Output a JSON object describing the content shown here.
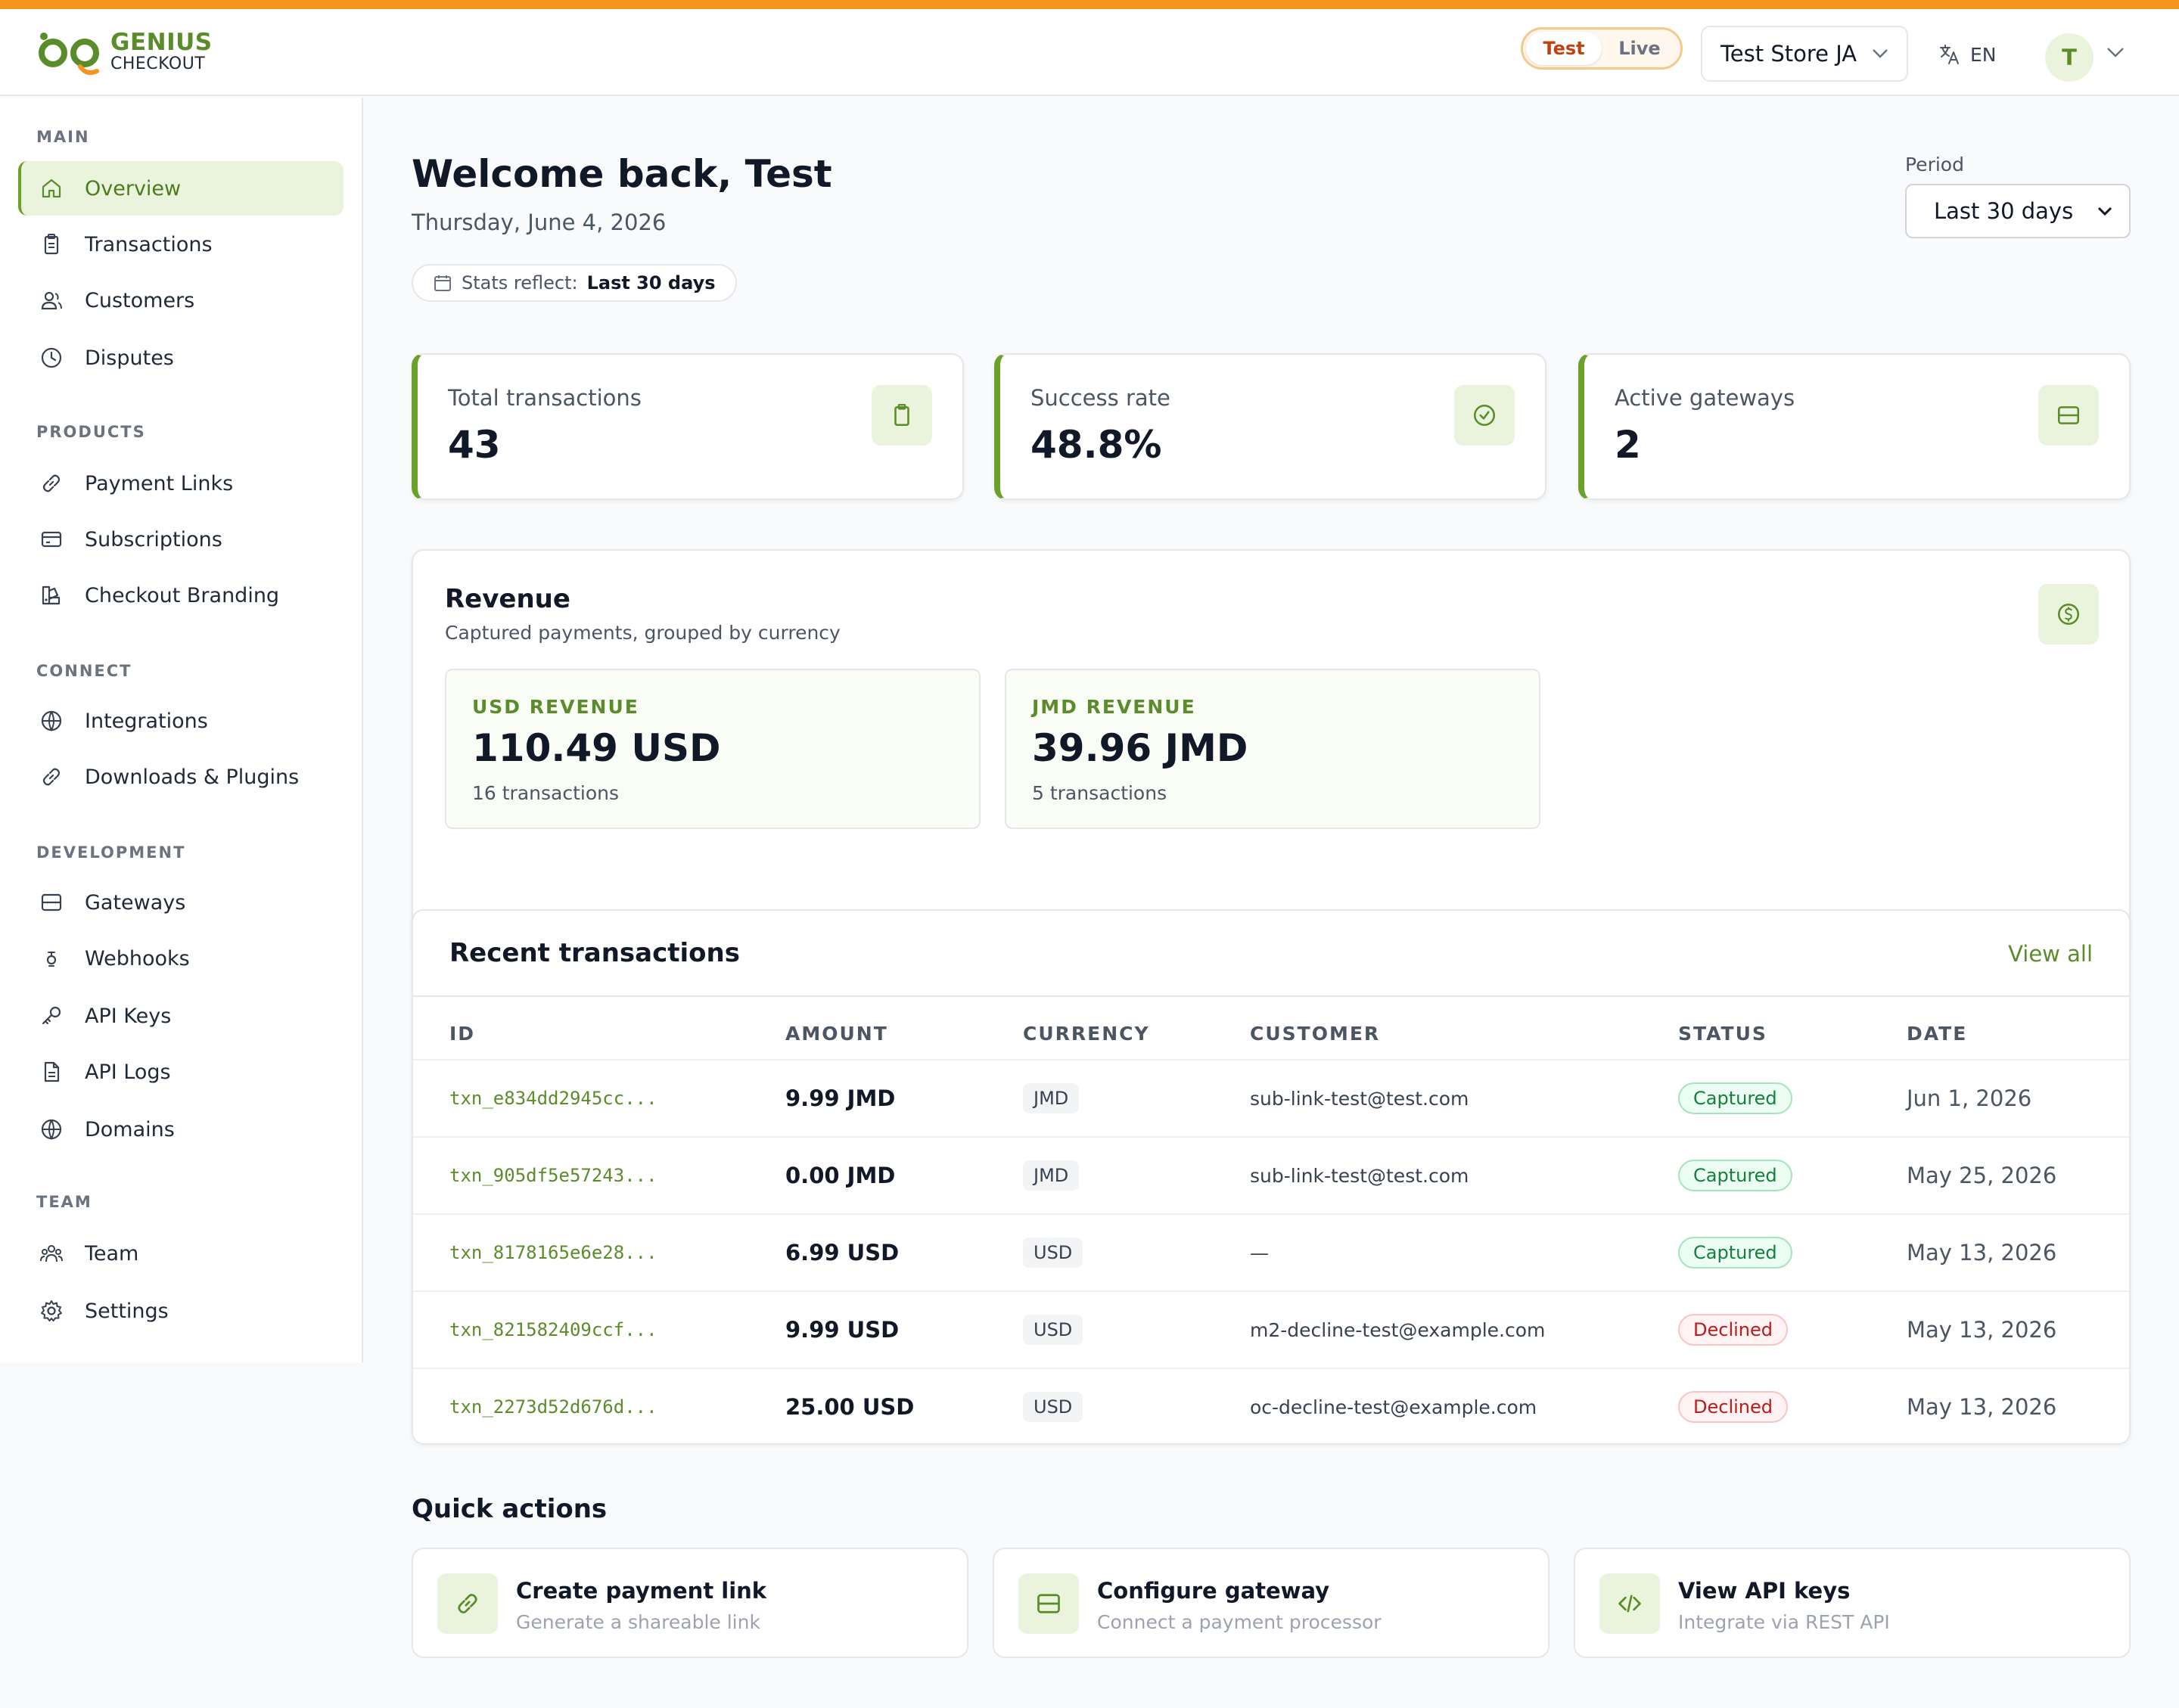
{
  "brand": {
    "line1": "GENIUS",
    "line2": "CHECKOUT",
    "accent_color": "#f7941d",
    "primary_color": "#6aa12b"
  },
  "header": {
    "mode_toggle": {
      "test": "Test",
      "live": "Live",
      "selected": "Test"
    },
    "store": "Test Store JA",
    "language": "EN",
    "avatar_initial": "T"
  },
  "sidebar": {
    "sections": [
      {
        "title": "MAIN",
        "items": [
          {
            "label": "Overview",
            "icon": "home-icon",
            "active": true
          },
          {
            "label": "Transactions",
            "icon": "clipboard-icon"
          },
          {
            "label": "Customers",
            "icon": "users-icon"
          },
          {
            "label": "Disputes",
            "icon": "clock-icon"
          }
        ]
      },
      {
        "title": "PRODUCTS",
        "items": [
          {
            "label": "Payment Links",
            "icon": "link-icon"
          },
          {
            "label": "Subscriptions",
            "icon": "card-icon"
          },
          {
            "label": "Checkout Branding",
            "icon": "palette-icon"
          }
        ]
      },
      {
        "title": "CONNECT",
        "items": [
          {
            "label": "Integrations",
            "icon": "globe-icon"
          },
          {
            "label": "Downloads & Plugins",
            "icon": "link-icon"
          }
        ]
      },
      {
        "title": "DEVELOPMENT",
        "items": [
          {
            "label": "Gateways",
            "icon": "server-icon"
          },
          {
            "label": "Webhooks",
            "icon": "webhook-icon"
          },
          {
            "label": "API Keys",
            "icon": "key-icon"
          },
          {
            "label": "API Logs",
            "icon": "document-icon"
          },
          {
            "label": "Domains",
            "icon": "globe-icon"
          }
        ]
      },
      {
        "title": "TEAM",
        "items": [
          {
            "label": "Team",
            "icon": "team-icon"
          },
          {
            "label": "Settings",
            "icon": "gear-icon"
          }
        ]
      }
    ]
  },
  "main": {
    "welcome": "Welcome back, Test",
    "date": "Thursday, June 4, 2026",
    "stats_reflect_label": "Stats reflect:",
    "stats_reflect_value": "Last 30 days",
    "period_label": "Period",
    "period_value": "Last 30 days"
  },
  "stats": [
    {
      "label": "Total transactions",
      "value": "43",
      "icon": "clipboard-icon"
    },
    {
      "label": "Success rate",
      "value": "48.8%",
      "icon": "check-circle-icon"
    },
    {
      "label": "Active gateways",
      "value": "2",
      "icon": "server-icon"
    }
  ],
  "revenue": {
    "title": "Revenue",
    "subtitle": "Captured payments, grouped by currency",
    "icon": "dollar-icon",
    "cards": [
      {
        "currency": "USD REVENUE",
        "amount": "110.49 USD",
        "count": "16 transactions"
      },
      {
        "currency": "JMD REVENUE",
        "amount": "39.96 JMD",
        "count": "5 transactions"
      }
    ]
  },
  "recent": {
    "title": "Recent transactions",
    "view_all": "View all",
    "columns": [
      "ID",
      "AMOUNT",
      "CURRENCY",
      "CUSTOMER",
      "STATUS",
      "DATE"
    ],
    "rows": [
      {
        "id": "txn_e834dd2945cc...",
        "amount": "9.99 JMD",
        "currency": "JMD",
        "customer": "sub-link-test@test.com",
        "status": "Captured",
        "date": "Jun 1, 2026"
      },
      {
        "id": "txn_905df5e57243...",
        "amount": "0.00 JMD",
        "currency": "JMD",
        "customer": "sub-link-test@test.com",
        "status": "Captured",
        "date": "May 25, 2026"
      },
      {
        "id": "txn_8178165e6e28...",
        "amount": "6.99 USD",
        "currency": "USD",
        "customer": "—",
        "status": "Captured",
        "date": "May 13, 2026"
      },
      {
        "id": "txn_821582409ccf...",
        "amount": "9.99 USD",
        "currency": "USD",
        "customer": "m2-decline-test@example.com",
        "status": "Declined",
        "date": "May 13, 2026"
      },
      {
        "id": "txn_2273d52d676d...",
        "amount": "25.00 USD",
        "currency": "USD",
        "customer": "oc-decline-test@example.com",
        "status": "Declined",
        "date": "May 13, 2026"
      }
    ]
  },
  "quick_actions": {
    "title": "Quick actions",
    "items": [
      {
        "title": "Create payment link",
        "subtitle": "Generate a shareable link",
        "icon": "link-icon"
      },
      {
        "title": "Configure gateway",
        "subtitle": "Connect a payment processor",
        "icon": "server-icon"
      },
      {
        "title": "View API keys",
        "subtitle": "Integrate via REST API",
        "icon": "code-icon"
      }
    ]
  }
}
